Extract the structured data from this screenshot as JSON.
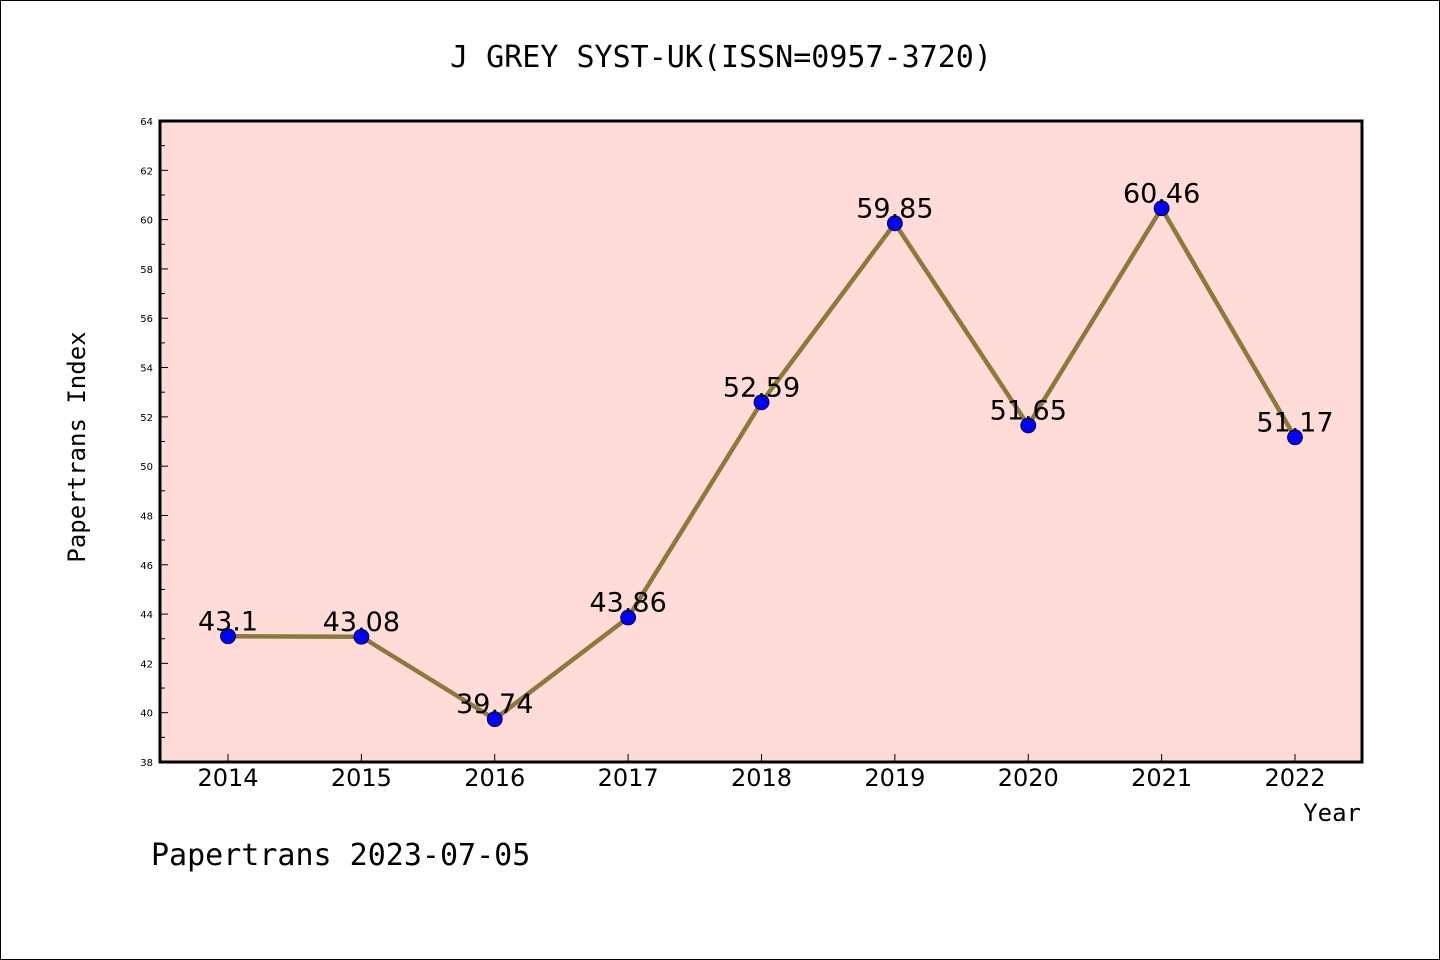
{
  "chart_data": {
    "type": "line",
    "title": "J GREY SYST-UK(ISSN=0957-3720)",
    "xlabel": "Year",
    "ylabel": "Papertrans Index",
    "categories": [
      "2014",
      "2015",
      "2016",
      "2017",
      "2018",
      "2019",
      "2020",
      "2021",
      "2022"
    ],
    "values": [
      43.1,
      43.08,
      39.74,
      43.86,
      52.59,
      59.85,
      51.65,
      60.46,
      51.17
    ],
    "data_labels": [
      "43.1",
      "43.08",
      "39.74",
      "43.86",
      "52.59",
      "59.85",
      "51.65",
      "60.46",
      "51.17"
    ],
    "ylim": [
      38,
      64
    ],
    "yticks": [
      38,
      40,
      42,
      44,
      46,
      48,
      50,
      52,
      54,
      56,
      58,
      60,
      62,
      64
    ],
    "grid": false,
    "legend": "none",
    "colors": {
      "plot_background": "#ffdcd8",
      "line": "#8c7a3a",
      "marker": "#0000ff"
    }
  },
  "footer": {
    "text": "Papertrans 2023-07-05"
  }
}
